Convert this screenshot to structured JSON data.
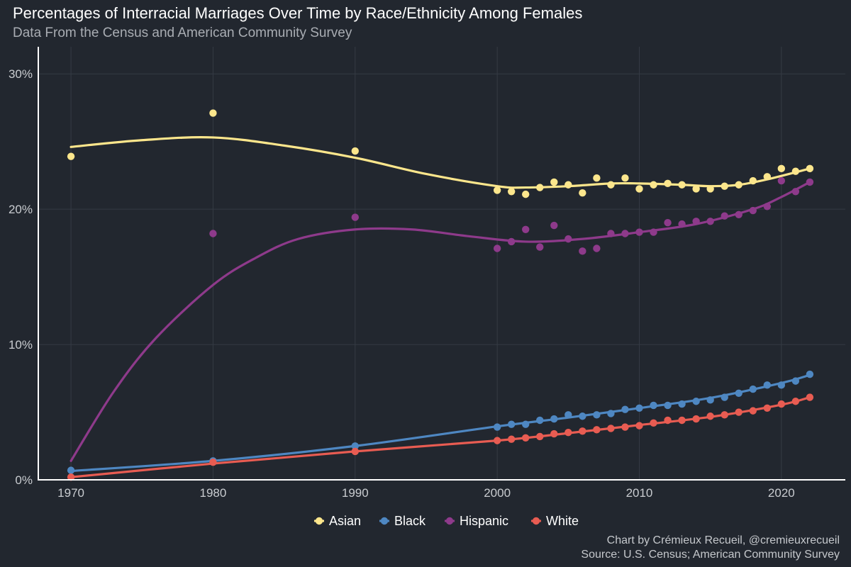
{
  "title": "Percentages of Interracial Marriages Over Time by Race/Ethnicity Among Females",
  "subtitle": "Data From the Census and American Community Survey",
  "caption": {
    "line1": "Chart by Crémieux Recueil, @cremieuxrecueil",
    "line2": "Source: U.S. Census; American Community Survey"
  },
  "colors": {
    "background": "#22272f",
    "grid": "#353b44",
    "axis": "#ffffff",
    "tick_text": "#c9ccd0"
  },
  "chart_data": {
    "type": "scatter",
    "title": "Percentages of Interracial Marriages Over Time by Race/Ethnicity Among Females",
    "xlabel": "",
    "ylabel": "",
    "xlim": [
      1967.7,
      2024.5
    ],
    "ylim": [
      0,
      32
    ],
    "x_ticks": [
      1970,
      1980,
      1990,
      2000,
      2010,
      2020
    ],
    "y_ticks": [
      0,
      10,
      20,
      30
    ],
    "y_tick_labels": [
      "0%",
      "10%",
      "20%",
      "30%"
    ],
    "grid": true,
    "legend_position": "bottom",
    "x": [
      1970,
      1980,
      1990,
      2000,
      2001,
      2002,
      2003,
      2004,
      2005,
      2006,
      2007,
      2008,
      2009,
      2010,
      2011,
      2012,
      2013,
      2014,
      2015,
      2016,
      2017,
      2018,
      2019,
      2020,
      2021,
      2022
    ],
    "series": [
      {
        "name": "Asian",
        "color": "#fce68c",
        "values": [
          23.9,
          27.1,
          24.3,
          21.4,
          21.3,
          21.1,
          21.6,
          22.0,
          21.8,
          21.2,
          22.3,
          21.8,
          22.3,
          21.5,
          21.8,
          21.9,
          21.8,
          21.5,
          21.5,
          21.7,
          21.8,
          22.1,
          22.4,
          23.0,
          22.8,
          23.0
        ],
        "trend": [
          [
            1970,
            24.6
          ],
          [
            1975,
            25.1
          ],
          [
            1980,
            25.3
          ],
          [
            1985,
            24.7
          ],
          [
            1990,
            23.8
          ],
          [
            1995,
            22.6
          ],
          [
            2000,
            21.7
          ],
          [
            2002,
            21.6
          ],
          [
            2005,
            21.7
          ],
          [
            2008,
            21.9
          ],
          [
            2010,
            21.9
          ],
          [
            2013,
            21.8
          ],
          [
            2015,
            21.7
          ],
          [
            2017,
            21.8
          ],
          [
            2019,
            22.2
          ],
          [
            2022,
            23.0
          ]
        ]
      },
      {
        "name": "Black",
        "color": "#4e87c2",
        "values": [
          0.7,
          1.4,
          2.5,
          3.9,
          4.1,
          4.1,
          4.4,
          4.5,
          4.8,
          4.7,
          4.8,
          4.9,
          5.2,
          5.3,
          5.5,
          5.5,
          5.6,
          5.8,
          5.9,
          6.1,
          6.4,
          6.7,
          7.0,
          7.0,
          7.3,
          7.8
        ],
        "trend": [
          [
            1970,
            0.65
          ],
          [
            1980,
            1.4
          ],
          [
            1990,
            2.5
          ],
          [
            2000,
            3.95
          ],
          [
            2005,
            4.6
          ],
          [
            2010,
            5.3
          ],
          [
            2015,
            6.05
          ],
          [
            2020,
            7.15
          ],
          [
            2022,
            7.75
          ]
        ]
      },
      {
        "name": "Hispanic",
        "color": "#8e3a8b",
        "values": [
          null,
          18.2,
          19.4,
          17.1,
          17.6,
          18.5,
          17.2,
          18.8,
          17.8,
          16.9,
          17.1,
          18.2,
          18.2,
          18.3,
          18.3,
          19.0,
          18.9,
          19.1,
          19.1,
          19.5,
          19.6,
          19.9,
          20.2,
          22.1,
          21.3,
          22.0
        ],
        "trend": [
          [
            1970,
            1.4
          ],
          [
            1973,
            6.5
          ],
          [
            1976,
            10.5
          ],
          [
            1980,
            14.4
          ],
          [
            1983,
            16.4
          ],
          [
            1986,
            17.8
          ],
          [
            1990,
            18.5
          ],
          [
            1994,
            18.5
          ],
          [
            1998,
            18.0
          ],
          [
            2002,
            17.6
          ],
          [
            2006,
            17.8
          ],
          [
            2010,
            18.3
          ],
          [
            2014,
            18.9
          ],
          [
            2018,
            20.0
          ],
          [
            2020,
            20.9
          ],
          [
            2022,
            22.0
          ]
        ]
      },
      {
        "name": "White",
        "color": "#e85c52",
        "values": [
          0.2,
          1.3,
          2.1,
          2.9,
          3.0,
          3.1,
          3.2,
          3.4,
          3.5,
          3.6,
          3.7,
          3.8,
          3.9,
          4.0,
          4.2,
          4.4,
          4.4,
          4.5,
          4.7,
          4.8,
          5.0,
          5.1,
          5.3,
          5.6,
          5.8,
          6.1
        ],
        "trend": [
          [
            1970,
            0.2
          ],
          [
            1980,
            1.2
          ],
          [
            1990,
            2.1
          ],
          [
            2000,
            2.9
          ],
          [
            2005,
            3.45
          ],
          [
            2010,
            4.05
          ],
          [
            2015,
            4.65
          ],
          [
            2020,
            5.55
          ],
          [
            2022,
            6.1
          ]
        ]
      }
    ]
  }
}
